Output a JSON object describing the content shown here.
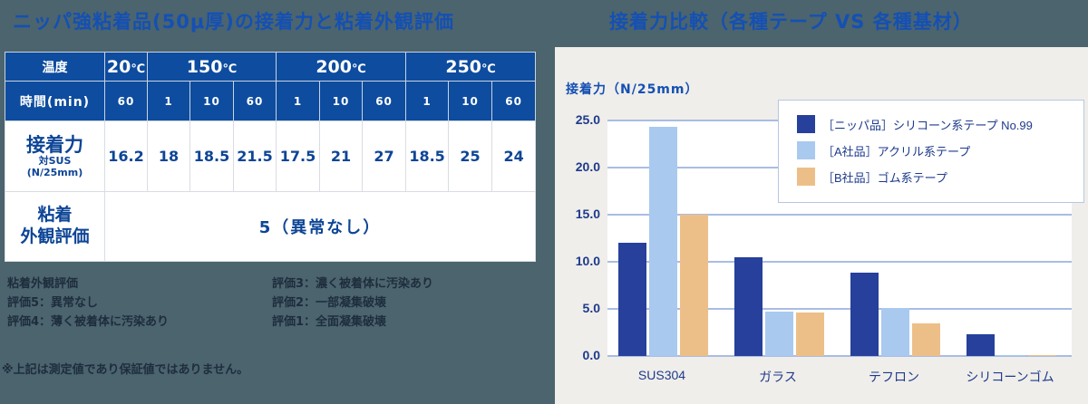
{
  "titles": {
    "left": "ニッパ強粘着品(50μ厚)の接着力と粘着外観評価",
    "right": "接着力比較（各種テープ VS 各種基材）"
  },
  "table": {
    "row_labels": {
      "temp": "温度",
      "time": "時間(min)",
      "adhesion_main": "接着力",
      "adhesion_sub1": "対SUS",
      "adhesion_sub2": "(N/25mm)",
      "appearance_line1": "粘着",
      "appearance_line2": "外観評価"
    },
    "temps": [
      {
        "value": "20",
        "unit": "℃",
        "span": 1
      },
      {
        "value": "150",
        "unit": "℃",
        "span": 3
      },
      {
        "value": "200",
        "unit": "℃",
        "span": 3
      },
      {
        "value": "250",
        "unit": "℃",
        "span": 3
      }
    ],
    "times": [
      "60",
      "1",
      "10",
      "60",
      "1",
      "10",
      "60",
      "1",
      "10",
      "60"
    ],
    "adhesion_values": [
      "16.2",
      "18",
      "18.5",
      "21.5",
      "17.5",
      "21",
      "27",
      "18.5",
      "25",
      "24"
    ],
    "appearance_value": "5（異常なし）"
  },
  "rating_legend": {
    "col1": [
      "粘着外観評価",
      "評価5：異常なし",
      "評価4：薄く被着体に汚染あり"
    ],
    "col2": [
      "評価3：濃く被着体に汚染あり",
      "評価2：一部凝集破壊",
      "評価1：全面凝集破壊"
    ]
  },
  "footnote": "※上記は測定値であり保証値ではありません。",
  "chart_data": {
    "type": "bar",
    "title": "接着力比較（各種テープ VS 各種基材）",
    "ylabel": "接着力（N/25mm）",
    "xlabel": "",
    "ylim": [
      0,
      25
    ],
    "yticks": [
      "25.0",
      "20.0",
      "15.0",
      "10.0",
      "5.0",
      "0.0"
    ],
    "grid": true,
    "legend_position": "upper right",
    "categories": [
      "SUS304",
      "ガラス",
      "テフロン",
      "シリコーンゴム"
    ],
    "series": [
      {
        "name": "［ニッパ品］シリコーン系テープ No.99",
        "color": "#27409b",
        "values": [
          12.0,
          10.5,
          8.8,
          2.3
        ]
      },
      {
        "name": "［A社品］アクリル系テープ",
        "color": "#a9c9ef",
        "values": [
          24.3,
          4.7,
          5.1,
          0.1
        ]
      },
      {
        "name": "［B社品］ゴム系テープ",
        "color": "#edbf88",
        "values": [
          15.0,
          4.6,
          3.5,
          0.05
        ]
      }
    ]
  }
}
